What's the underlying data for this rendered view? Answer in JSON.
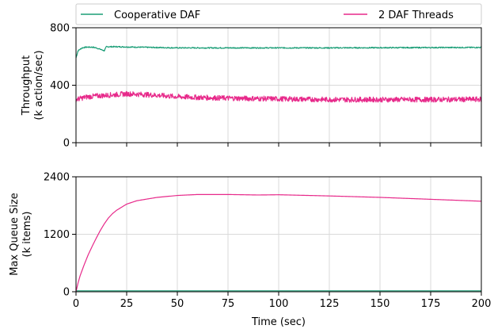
{
  "chart_data": [
    {
      "type": "line",
      "ylabel": "Throughput\n(k action/sec)",
      "xlabel": "",
      "xlim": [
        0,
        200
      ],
      "ylim": [
        0,
        800
      ],
      "yticks": [
        "0",
        "400",
        "800"
      ],
      "grid": true,
      "legend": {
        "placement": "top (above plots)",
        "entries": [
          "Cooperative DAF",
          "2 DAF Threads"
        ]
      },
      "series": [
        {
          "name": "Cooperative DAF",
          "color": "#1b9e77",
          "x": [
            0,
            1,
            3,
            5,
            8,
            10,
            12,
            14,
            15,
            20,
            30,
            50,
            75,
            100,
            125,
            150,
            175,
            200
          ],
          "y": [
            590,
            640,
            660,
            665,
            665,
            660,
            650,
            640,
            668,
            668,
            665,
            660,
            660,
            660,
            660,
            661,
            662,
            663
          ]
        },
        {
          "name": "2 DAF Threads",
          "color": "#e7298a",
          "x": [
            0,
            5,
            10,
            15,
            20,
            25,
            30,
            40,
            50,
            60,
            75,
            100,
            125,
            150,
            175,
            200
          ],
          "y": [
            300,
            318,
            325,
            330,
            335,
            340,
            338,
            330,
            320,
            315,
            310,
            305,
            300,
            300,
            300,
            302
          ]
        }
      ]
    },
    {
      "type": "line",
      "ylabel": "Max Queue Size\n(k items)",
      "xlabel": "Time (sec)",
      "xlim": [
        0,
        200
      ],
      "ylim": [
        0,
        2400
      ],
      "xticks": [
        "0",
        "25",
        "50",
        "75",
        "100",
        "125",
        "150",
        "175",
        "200"
      ],
      "yticks": [
        "0",
        "1200",
        "2400"
      ],
      "grid": true,
      "series": [
        {
          "name": "Cooperative DAF",
          "color": "#1b9e77",
          "x": [
            0,
            200
          ],
          "y": [
            20,
            20
          ]
        },
        {
          "name": "2 DAF Threads",
          "color": "#e7298a",
          "x": [
            0,
            1,
            2,
            4,
            6,
            8,
            10,
            12,
            14,
            16,
            18,
            20,
            25,
            30,
            40,
            50,
            60,
            75,
            90,
            100,
            110,
            125,
            150,
            175,
            200
          ],
          "y": [
            0,
            180,
            330,
            560,
            770,
            950,
            1120,
            1280,
            1420,
            1540,
            1630,
            1700,
            1830,
            1900,
            1970,
            2010,
            2030,
            2030,
            2020,
            2025,
            2015,
            2000,
            1970,
            1930,
            1890
          ]
        }
      ]
    }
  ]
}
